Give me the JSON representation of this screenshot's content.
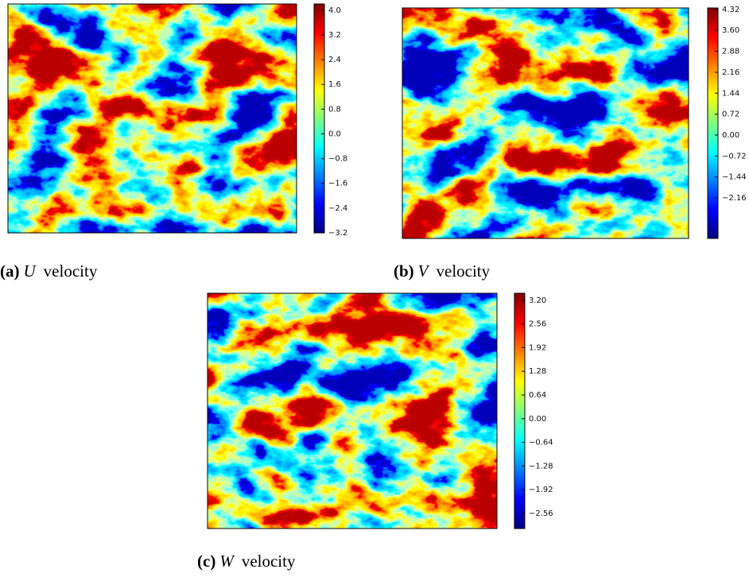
{
  "panels": [
    {
      "label": "(a)",
      "variable": "U",
      "caption": "velocity",
      "colorbar": {
        "lim": [
          -3.2,
          4.2
        ],
        "ticks": [
          {
            "value": 4,
            "label": "4.0"
          },
          3.2,
          2.4,
          1.6,
          0.8,
          {
            "value": 0,
            "label": "0.0"
          },
          {
            "value": -0.8,
            "label": "−0.8"
          },
          {
            "value": -1.6,
            "label": "−1.6"
          },
          {
            "value": -2.4,
            "label": "−2.4"
          },
          {
            "value": -3.2,
            "label": "−3.2"
          }
        ]
      }
    },
    {
      "label": "(b)",
      "variable": "V",
      "caption": "velocity",
      "colorbar": {
        "lim": [
          -3.55,
          4.37
        ],
        "ticks": [
          4.32,
          {
            "value": 3.6,
            "label": "3.60"
          },
          2.88,
          2.16,
          1.44,
          0.72,
          {
            "value": 0,
            "label": "0.00"
          },
          {
            "value": -0.72,
            "label": "−0.72"
          },
          {
            "value": -1.44,
            "label": "−1.44"
          },
          {
            "value": -2.16,
            "label": "−2.16"
          }
        ]
      }
    },
    {
      "label": "(c)",
      "variable": "W",
      "caption": "velocity",
      "colorbar": {
        "lim": [
          -2.97,
          3.39
        ],
        "ticks": [
          {
            "value": 3.2,
            "label": "3.20"
          },
          2.56,
          1.92,
          1.28,
          0.64,
          {
            "value": 0,
            "label": "0.00"
          },
          {
            "value": -0.64,
            "label": "−0.64"
          },
          {
            "value": -1.28,
            "label": "−1.28"
          },
          {
            "value": -1.92,
            "label": "−1.92"
          },
          {
            "value": -2.56,
            "label": "−2.56"
          }
        ]
      }
    }
  ]
}
